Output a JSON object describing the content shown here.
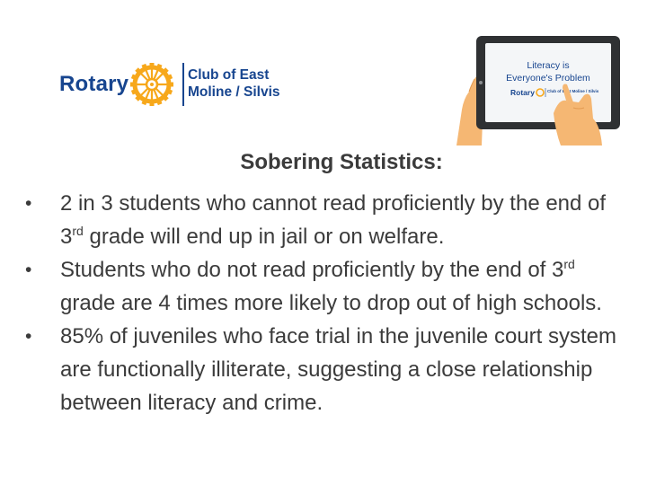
{
  "logo": {
    "wordmark": "Rotary",
    "club_line1": "Club of East",
    "club_line2": "Moline / Silvis",
    "brand_color": "#17458f",
    "gold_color": "#f7a81b"
  },
  "tablet_art": {
    "icon": "hand-holding-tablet-icon",
    "screen_title_line1": "Literacy is",
    "screen_title_line2": "Everyone's Problem",
    "screen_logo_word": "Rotary",
    "screen_logo_club": "Club of East Moline / Silvis",
    "hand_color": "#f5b773"
  },
  "heading": "Sobering Statistics:",
  "bullets": [
    {
      "marker": "•",
      "text_a": "2 in 3 students who cannot read proficiently by the end of 3",
      "sup": "rd",
      "text_b": " grade will end up in jail or on welfare."
    },
    {
      "marker": "•",
      "text_a": "Students who do not read proficiently by the end of 3",
      "sup": "rd",
      "text_b": " grade are 4 times more likely to drop out of high schools."
    },
    {
      "marker": "•",
      "text_a": "85% of juveniles who face trial in the juvenile court system are functionally illiterate, suggesting a close relationship between literacy and crime.",
      "sup": "",
      "text_b": ""
    }
  ]
}
